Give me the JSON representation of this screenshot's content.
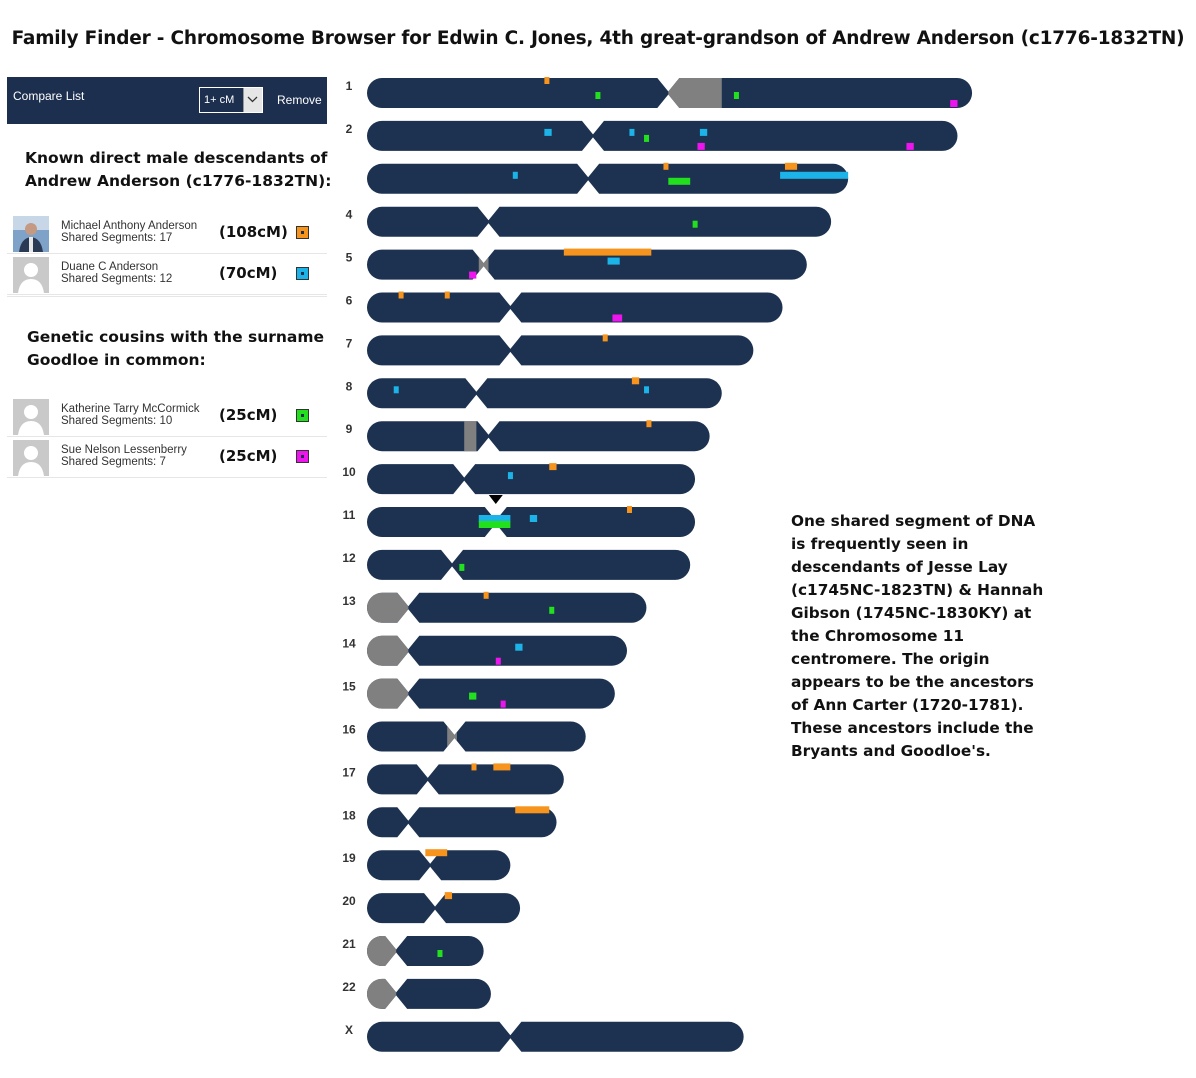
{
  "title": "Family Finder - Chromosome Browser for Edwin C. Jones, 4th great-grandson of Andrew Anderson (c1776-1832TN)",
  "compare_list": {
    "label": "Compare List",
    "threshold": "1+ cM",
    "remove_label": "Remove"
  },
  "group1_heading": {
    "line1": "Known direct male descendants of",
    "line2": "Andrew Anderson (c1776-1832TN):"
  },
  "group2_heading": {
    "line1": "Genetic cousins with the surname",
    "line2": "Goodloe in common:"
  },
  "matches": [
    {
      "name": "Michael Anthony Anderson",
      "segments": "Shared Segments: 17",
      "cm": "(108cM)",
      "color": "#f7941d",
      "photo": true
    },
    {
      "name": "Duane C Anderson",
      "segments": "Shared Segments: 12",
      "cm": "(70cM)",
      "color": "#1cb4e8",
      "photo": false
    },
    {
      "name": "Katherine Tarry McCormick",
      "segments": "Shared Segments: 10",
      "cm": "(25cM)",
      "color": "#22e01e",
      "photo": false
    },
    {
      "name": "Sue Nelson Lessenberry",
      "segments": "Shared Segments: 7",
      "cm": "(25cM)",
      "color": "#ee14ee",
      "photo": false
    }
  ],
  "annotation": "One shared segment of DNA is frequently seen in descendants of Jesse Lay (c1745NC-1823TN) & Hannah Gibson (1745NC-1830KY) at the Chromosome 11 centromere. The origin appears to be the ancestors of Ann Carter (1720-1781). These ancestors include the Bryants and Goodloe's.",
  "colors": {
    "chromosome": "#1d3250",
    "gray_region": "#808080",
    "orange": "#f7941d",
    "cyan": "#1cb4e8",
    "green": "#22e01e",
    "magenta": "#ee14ee",
    "x_label": "#cc3333"
  },
  "chromosomes": [
    {
      "label": "1",
      "length_mb": 249,
      "centromere_mb": 124,
      "gray": [
        [
          124,
          146
        ]
      ],
      "segments": [
        {
          "c": "orange",
          "s": 73,
          "e": 75
        },
        {
          "c": "green",
          "s": 94,
          "e": 96
        },
        {
          "c": "green",
          "s": 151,
          "e": 153
        },
        {
          "c": "magenta",
          "s": 240,
          "e": 243
        }
      ]
    },
    {
      "label": "2",
      "length_mb": 243,
      "centromere_mb": 93,
      "gray": [],
      "segments": [
        {
          "c": "cyan",
          "s": 73,
          "e": 76
        },
        {
          "c": "cyan",
          "s": 108,
          "e": 110
        },
        {
          "c": "green",
          "s": 114,
          "e": 116
        },
        {
          "c": "cyan",
          "s": 137,
          "e": 140
        },
        {
          "c": "magenta",
          "s": 136,
          "e": 139
        },
        {
          "c": "magenta",
          "s": 222,
          "e": 225
        }
      ]
    },
    {
      "label": "",
      "length_mb": 198,
      "centromere_mb": 91,
      "gray": [],
      "segments": [
        {
          "c": "cyan",
          "s": 60,
          "e": 62
        },
        {
          "c": "orange",
          "s": 122,
          "e": 124
        },
        {
          "c": "green",
          "s": 124,
          "e": 133
        },
        {
          "c": "orange",
          "s": 172,
          "e": 177
        },
        {
          "c": "cyan",
          "s": 170,
          "e": 198
        }
      ]
    },
    {
      "label": "4",
      "length_mb": 191,
      "centromere_mb": 50,
      "gray": [],
      "segments": [
        {
          "c": "green",
          "s": 134,
          "e": 136
        }
      ]
    },
    {
      "label": "5",
      "length_mb": 181,
      "centromere_mb": 48,
      "gray": [
        [
          46,
          50
        ]
      ],
      "segments": [
        {
          "c": "magenta",
          "s": 42,
          "e": 45
        },
        {
          "c": "orange",
          "s": 81,
          "e": 117
        },
        {
          "c": "cyan",
          "s": 99,
          "e": 104
        }
      ]
    },
    {
      "label": "6",
      "length_mb": 171,
      "centromere_mb": 59,
      "gray": [],
      "segments": [
        {
          "c": "orange",
          "s": 13,
          "e": 15
        },
        {
          "c": "orange",
          "s": 32,
          "e": 33
        },
        {
          "c": "magenta",
          "s": 101,
          "e": 105
        }
      ]
    },
    {
      "label": "7",
      "length_mb": 159,
      "centromere_mb": 59,
      "gray": [],
      "segments": [
        {
          "c": "orange",
          "s": 97,
          "e": 99
        }
      ]
    },
    {
      "label": "8",
      "length_mb": 146,
      "centromere_mb": 45,
      "gray": [],
      "segments": [
        {
          "c": "cyan",
          "s": 11,
          "e": 13
        },
        {
          "c": "orange",
          "s": 109,
          "e": 112
        },
        {
          "c": "cyan",
          "s": 114,
          "e": 116
        }
      ]
    },
    {
      "label": "9",
      "length_mb": 141,
      "centromere_mb": 50,
      "gray": [
        [
          40,
          45
        ]
      ],
      "segments": [
        {
          "c": "orange",
          "s": 115,
          "e": 117
        }
      ]
    },
    {
      "label": "10",
      "length_mb": 135,
      "centromere_mb": 40,
      "gray": [],
      "segments": [
        {
          "c": "cyan",
          "s": 58,
          "e": 60
        },
        {
          "c": "orange",
          "s": 75,
          "e": 78
        }
      ]
    },
    {
      "label": "11",
      "length_mb": 135,
      "centromere_mb": 53,
      "gray": [],
      "marker_mb": 53,
      "segments": [
        {
          "c": "cyan",
          "s": 46,
          "e": 59
        },
        {
          "c": "green",
          "s": 46,
          "e": 59
        },
        {
          "c": "cyan",
          "s": 67,
          "e": 70
        },
        {
          "c": "orange",
          "s": 107,
          "e": 109
        }
      ]
    },
    {
      "label": "12",
      "length_mb": 133,
      "centromere_mb": 35,
      "gray": [],
      "segments": [
        {
          "c": "green",
          "s": 38,
          "e": 40
        }
      ]
    },
    {
      "label": "13",
      "length_mb": 115,
      "centromere_mb": 17,
      "gray": [
        [
          0,
          17
        ]
      ],
      "segments": [
        {
          "c": "orange",
          "s": 48,
          "e": 50
        },
        {
          "c": "green",
          "s": 75,
          "e": 77
        }
      ]
    },
    {
      "label": "14",
      "length_mb": 107,
      "centromere_mb": 17,
      "gray": [
        [
          0,
          17
        ]
      ],
      "segments": [
        {
          "c": "cyan",
          "s": 61,
          "e": 64
        },
        {
          "c": "magenta",
          "s": 53,
          "e": 55
        }
      ]
    },
    {
      "label": "15",
      "length_mb": 102,
      "centromere_mb": 17,
      "gray": [
        [
          0,
          17
        ]
      ],
      "segments": [
        {
          "c": "green",
          "s": 42,
          "e": 45
        },
        {
          "c": "magenta",
          "s": 55,
          "e": 56
        }
      ]
    },
    {
      "label": "16",
      "length_mb": 90,
      "centromere_mb": 36,
      "gray": [
        [
          33,
          37
        ]
      ],
      "segments": []
    },
    {
      "label": "17",
      "length_mb": 81,
      "centromere_mb": 25,
      "gray": [],
      "segments": [
        {
          "c": "orange",
          "s": 43,
          "e": 45
        },
        {
          "c": "orange",
          "s": 52,
          "e": 59
        }
      ]
    },
    {
      "label": "18",
      "length_mb": 78,
      "centromere_mb": 17,
      "gray": [],
      "segments": [
        {
          "c": "orange",
          "s": 61,
          "e": 75
        }
      ]
    },
    {
      "label": "19",
      "length_mb": 59,
      "centromere_mb": 26,
      "gray": [],
      "segments": [
        {
          "c": "orange",
          "s": 24,
          "e": 33
        }
      ]
    },
    {
      "label": "20",
      "length_mb": 63,
      "centromere_mb": 28,
      "gray": [],
      "segments": [
        {
          "c": "orange",
          "s": 32,
          "e": 35
        }
      ]
    },
    {
      "label": "21",
      "length_mb": 48,
      "centromere_mb": 12,
      "gray": [
        [
          0,
          12
        ]
      ],
      "segments": [
        {
          "c": "green",
          "s": 29,
          "e": 31
        }
      ]
    },
    {
      "label": "22",
      "length_mb": 51,
      "centromere_mb": 12,
      "gray": [
        [
          0,
          12
        ]
      ],
      "segments": []
    },
    {
      "label": "X",
      "length_mb": 155,
      "centromere_mb": 59,
      "gray": [],
      "segments": []
    }
  ]
}
